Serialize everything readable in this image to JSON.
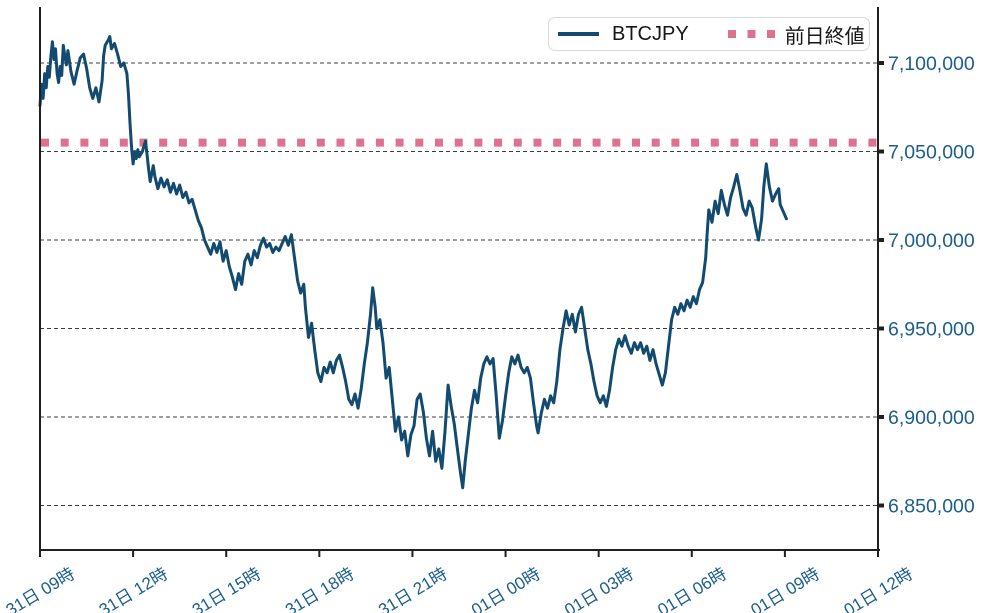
{
  "legend": {
    "series_label": "BTCJPY",
    "ref_label": "前日終値"
  },
  "colors": {
    "price_line": "#134a70",
    "prev_close_line": "#de7190",
    "axis_label": "#1b5e8c",
    "axis_spine": "#202020",
    "gridline": "#3c3c3c",
    "legend_border": "#d9d9d9",
    "background": "#ffffff"
  },
  "chart_data": {
    "type": "line",
    "title": "",
    "xlabel": "",
    "ylabel": "",
    "grid": "horizontal-dashed",
    "legend_position": "top-right",
    "x_axis": {
      "unit": "hours-from-31日09時",
      "range_hours": [
        0,
        27
      ],
      "ticks": [
        {
          "hour": 0,
          "label": "31日 09時"
        },
        {
          "hour": 3,
          "label": "31日 12時"
        },
        {
          "hour": 6,
          "label": "31日 15時"
        },
        {
          "hour": 9,
          "label": "31日 18時"
        },
        {
          "hour": 12,
          "label": "31日 21時"
        },
        {
          "hour": 15,
          "label": "01日 00時"
        },
        {
          "hour": 18,
          "label": "01日 03時"
        },
        {
          "hour": 21,
          "label": "01日 06時"
        },
        {
          "hour": 24,
          "label": "01日 09時"
        },
        {
          "hour": 27,
          "label": "01日 12時"
        }
      ]
    },
    "y_axis": {
      "unit": "JPY",
      "ylim": [
        6824000,
        7132000
      ],
      "ticks": [
        {
          "value": 7100000,
          "label": "7,100,000"
        },
        {
          "value": 7050000,
          "label": "7,050,000"
        },
        {
          "value": 7000000,
          "label": "7,000,000"
        },
        {
          "value": 6950000,
          "label": "6,950,000"
        },
        {
          "value": 6900000,
          "label": "6,900,000"
        },
        {
          "value": 6850000,
          "label": "6,850,000"
        }
      ]
    },
    "reference_line": {
      "name": "前日終値",
      "value": 7055000,
      "color": "#de7190",
      "style": "dotted"
    },
    "series": [
      {
        "name": "BTCJPY",
        "color": "#134a70",
        "points": [
          [
            0,
            7076000
          ],
          [
            0.05,
            7088000
          ],
          [
            0.1,
            7080000
          ],
          [
            0.15,
            7094000
          ],
          [
            0.2,
            7086000
          ],
          [
            0.25,
            7098000
          ],
          [
            0.3,
            7092000
          ],
          [
            0.35,
            7104000
          ],
          [
            0.4,
            7112000
          ],
          [
            0.45,
            7102000
          ],
          [
            0.5,
            7108000
          ],
          [
            0.55,
            7094000
          ],
          [
            0.6,
            7089000
          ],
          [
            0.65,
            7098000
          ],
          [
            0.7,
            7093000
          ],
          [
            0.75,
            7110000
          ],
          [
            0.8,
            7104000
          ],
          [
            0.85,
            7099000
          ],
          [
            0.9,
            7107000
          ],
          [
            1,
            7095000
          ],
          [
            1.1,
            7088000
          ],
          [
            1.2,
            7096000
          ],
          [
            1.3,
            7103000
          ],
          [
            1.4,
            7105000
          ],
          [
            1.5,
            7097000
          ],
          [
            1.6,
            7086000
          ],
          [
            1.7,
            7080000
          ],
          [
            1.8,
            7086000
          ],
          [
            1.9,
            7078000
          ],
          [
            2,
            7090000
          ],
          [
            2.05,
            7104000
          ],
          [
            2.1,
            7110000
          ],
          [
            2.2,
            7113000
          ],
          [
            2.25,
            7115000
          ],
          [
            2.3,
            7108000
          ],
          [
            2.4,
            7111000
          ],
          [
            2.5,
            7105000
          ],
          [
            2.6,
            7098000
          ],
          [
            2.7,
            7100000
          ],
          [
            2.8,
            7094000
          ],
          [
            2.85,
            7082000
          ],
          [
            2.9,
            7066000
          ],
          [
            2.95,
            7052000
          ],
          [
            3,
            7043000
          ],
          [
            3.05,
            7050000
          ],
          [
            3.1,
            7046000
          ],
          [
            3.15,
            7051000
          ],
          [
            3.2,
            7047000
          ],
          [
            3.3,
            7050000
          ],
          [
            3.4,
            7056000
          ],
          [
            3.45,
            7048000
          ],
          [
            3.5,
            7040000
          ],
          [
            3.55,
            7033000
          ],
          [
            3.65,
            7042000
          ],
          [
            3.7,
            7036000
          ],
          [
            3.8,
            7029000
          ],
          [
            3.9,
            7035000
          ],
          [
            4,
            7030000
          ],
          [
            4.1,
            7034000
          ],
          [
            4.2,
            7027000
          ],
          [
            4.3,
            7032000
          ],
          [
            4.4,
            7026000
          ],
          [
            4.5,
            7031000
          ],
          [
            4.6,
            7024000
          ],
          [
            4.7,
            7027000
          ],
          [
            4.8,
            7021000
          ],
          [
            4.9,
            7023000
          ],
          [
            5,
            7017000
          ],
          [
            5.1,
            7011000
          ],
          [
            5.2,
            7007000
          ],
          [
            5.3,
            7000000
          ],
          [
            5.4,
            6996000
          ],
          [
            5.5,
            6992000
          ],
          [
            5.6,
            6998000
          ],
          [
            5.7,
            6993000
          ],
          [
            5.8,
            6999000
          ],
          [
            5.9,
            6988000
          ],
          [
            6,
            6994000
          ],
          [
            6.1,
            6985000
          ],
          [
            6.2,
            6979000
          ],
          [
            6.3,
            6972000
          ],
          [
            6.4,
            6981000
          ],
          [
            6.5,
            6975000
          ],
          [
            6.6,
            6988000
          ],
          [
            6.7,
            6992000
          ],
          [
            6.8,
            6986000
          ],
          [
            6.9,
            6994000
          ],
          [
            7,
            6990000
          ],
          [
            7.1,
            6997000
          ],
          [
            7.2,
            7001000
          ],
          [
            7.3,
            6996000
          ],
          [
            7.4,
            6998000
          ],
          [
            7.5,
            6993000
          ],
          [
            7.6,
            6996000
          ],
          [
            7.7,
            6994000
          ],
          [
            7.8,
            6998000
          ],
          [
            7.9,
            7002000
          ],
          [
            8,
            6997000
          ],
          [
            8.1,
            7003000
          ],
          [
            8.2,
            6990000
          ],
          [
            8.3,
            6977000
          ],
          [
            8.4,
            6970000
          ],
          [
            8.5,
            6975000
          ],
          [
            8.55,
            6962000
          ],
          [
            8.65,
            6945000
          ],
          [
            8.75,
            6953000
          ],
          [
            8.85,
            6938000
          ],
          [
            8.95,
            6925000
          ],
          [
            9.05,
            6920000
          ],
          [
            9.15,
            6928000
          ],
          [
            9.25,
            6925000
          ],
          [
            9.35,
            6931000
          ],
          [
            9.45,
            6925000
          ],
          [
            9.55,
            6932000
          ],
          [
            9.65,
            6935000
          ],
          [
            9.75,
            6928000
          ],
          [
            9.85,
            6920000
          ],
          [
            9.95,
            6910000
          ],
          [
            10.05,
            6907000
          ],
          [
            10.15,
            6913000
          ],
          [
            10.25,
            6905000
          ],
          [
            10.35,
            6916000
          ],
          [
            10.45,
            6930000
          ],
          [
            10.55,
            6942000
          ],
          [
            10.65,
            6958000
          ],
          [
            10.72,
            6973000
          ],
          [
            10.8,
            6962000
          ],
          [
            10.85,
            6950000
          ],
          [
            10.95,
            6955000
          ],
          [
            11.05,
            6942000
          ],
          [
            11.15,
            6922000
          ],
          [
            11.25,
            6928000
          ],
          [
            11.35,
            6910000
          ],
          [
            11.45,
            6892000
          ],
          [
            11.55,
            6900000
          ],
          [
            11.65,
            6887000
          ],
          [
            11.75,
            6892000
          ],
          [
            11.85,
            6878000
          ],
          [
            11.95,
            6890000
          ],
          [
            12.05,
            6895000
          ],
          [
            12.15,
            6910000
          ],
          [
            12.25,
            6913000
          ],
          [
            12.35,
            6903000
          ],
          [
            12.45,
            6888000
          ],
          [
            12.55,
            6878000
          ],
          [
            12.65,
            6892000
          ],
          [
            12.75,
            6875000
          ],
          [
            12.85,
            6882000
          ],
          [
            12.95,
            6871000
          ],
          [
            13.05,
            6892000
          ],
          [
            13.15,
            6918000
          ],
          [
            13.25,
            6906000
          ],
          [
            13.35,
            6896000
          ],
          [
            13.45,
            6882000
          ],
          [
            13.55,
            6868000
          ],
          [
            13.62,
            6860000
          ],
          [
            13.7,
            6875000
          ],
          [
            13.8,
            6890000
          ],
          [
            13.9,
            6905000
          ],
          [
            14,
            6915000
          ],
          [
            14.1,
            6908000
          ],
          [
            14.2,
            6922000
          ],
          [
            14.3,
            6930000
          ],
          [
            14.4,
            6934000
          ],
          [
            14.5,
            6930000
          ],
          [
            14.6,
            6933000
          ],
          [
            14.7,
            6912000
          ],
          [
            14.8,
            6888000
          ],
          [
            14.9,
            6898000
          ],
          [
            15,
            6912000
          ],
          [
            15.1,
            6925000
          ],
          [
            15.2,
            6934000
          ],
          [
            15.3,
            6930000
          ],
          [
            15.4,
            6935000
          ],
          [
            15.5,
            6928000
          ],
          [
            15.6,
            6925000
          ],
          [
            15.7,
            6928000
          ],
          [
            15.8,
            6922000
          ],
          [
            15.9,
            6908000
          ],
          [
            16,
            6895000
          ],
          [
            16.05,
            6891000
          ],
          [
            16.15,
            6902000
          ],
          [
            16.25,
            6910000
          ],
          [
            16.35,
            6905000
          ],
          [
            16.45,
            6912000
          ],
          [
            16.55,
            6908000
          ],
          [
            16.65,
            6920000
          ],
          [
            16.75,
            6938000
          ],
          [
            16.85,
            6950000
          ],
          [
            16.95,
            6960000
          ],
          [
            17.05,
            6952000
          ],
          [
            17.15,
            6958000
          ],
          [
            17.25,
            6948000
          ],
          [
            17.35,
            6958000
          ],
          [
            17.45,
            6962000
          ],
          [
            17.55,
            6950000
          ],
          [
            17.65,
            6938000
          ],
          [
            17.75,
            6930000
          ],
          [
            17.85,
            6920000
          ],
          [
            17.95,
            6912000
          ],
          [
            18.05,
            6908000
          ],
          [
            18.15,
            6912000
          ],
          [
            18.25,
            6906000
          ],
          [
            18.35,
            6915000
          ],
          [
            18.45,
            6928000
          ],
          [
            18.55,
            6938000
          ],
          [
            18.65,
            6944000
          ],
          [
            18.75,
            6940000
          ],
          [
            18.85,
            6946000
          ],
          [
            18.95,
            6940000
          ],
          [
            19.05,
            6936000
          ],
          [
            19.15,
            6942000
          ],
          [
            19.25,
            6938000
          ],
          [
            19.35,
            6942000
          ],
          [
            19.45,
            6936000
          ],
          [
            19.55,
            6940000
          ],
          [
            19.65,
            6932000
          ],
          [
            19.75,
            6938000
          ],
          [
            19.85,
            6930000
          ],
          [
            19.95,
            6924000
          ],
          [
            20.05,
            6918000
          ],
          [
            20.15,
            6925000
          ],
          [
            20.25,
            6940000
          ],
          [
            20.35,
            6955000
          ],
          [
            20.45,
            6962000
          ],
          [
            20.55,
            6958000
          ],
          [
            20.65,
            6964000
          ],
          [
            20.75,
            6960000
          ],
          [
            20.85,
            6966000
          ],
          [
            20.95,
            6962000
          ],
          [
            21.05,
            6968000
          ],
          [
            21.15,
            6964000
          ],
          [
            21.25,
            6972000
          ],
          [
            21.35,
            6976000
          ],
          [
            21.45,
            6990000
          ],
          [
            21.5,
            7005000
          ],
          [
            21.55,
            7017000
          ],
          [
            21.65,
            7010000
          ],
          [
            21.75,
            7022000
          ],
          [
            21.85,
            7015000
          ],
          [
            21.95,
            7028000
          ],
          [
            22.05,
            7020000
          ],
          [
            22.15,
            7014000
          ],
          [
            22.25,
            7024000
          ],
          [
            22.35,
            7030000
          ],
          [
            22.45,
            7037000
          ],
          [
            22.55,
            7028000
          ],
          [
            22.65,
            7018000
          ],
          [
            22.75,
            7014000
          ],
          [
            22.85,
            7022000
          ],
          [
            22.95,
            7018000
          ],
          [
            23.05,
            7008000
          ],
          [
            23.15,
            7000000
          ],
          [
            23.25,
            7012000
          ],
          [
            23.32,
            7030000
          ],
          [
            23.4,
            7043000
          ],
          [
            23.5,
            7030000
          ],
          [
            23.6,
            7022000
          ],
          [
            23.7,
            7026000
          ],
          [
            23.8,
            7029000
          ],
          [
            23.85,
            7020000
          ],
          [
            23.95,
            7016000
          ],
          [
            24.05,
            7012000
          ]
        ]
      }
    ]
  }
}
